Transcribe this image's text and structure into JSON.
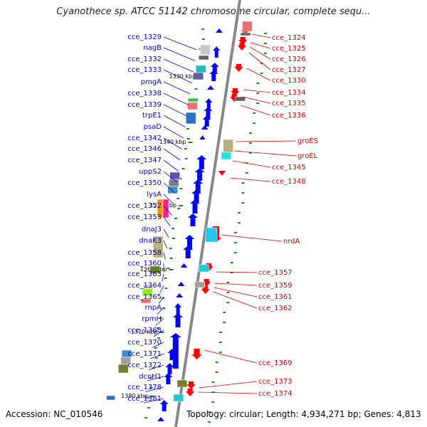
{
  "title": "Cyanothece sp. ATCC 51142 chromosome circular, complete sequ...",
  "footer": {
    "accession": "Accession: NC_010546",
    "summary": "Topology: circular; Length: 4,934,271 bp; Genes: 4,813"
  },
  "colors": {
    "left_label": "#0000cc",
    "right_label": "#cc0000",
    "forward_gene": "#0000ff",
    "reverse_gene": "#ff0000",
    "backbone": "#888888",
    "tick_mark": "#228b22"
  },
  "scale_ticks": [
    "1330 kbp",
    "1340 kbp",
    "1350 kbp",
    "1360 kbp",
    "1370 kbp",
    "1380 kbp"
  ],
  "left_labels": [
    "cce_1329",
    "nagB",
    "cce_1332",
    "cce_1333",
    "pmgA",
    "cce_1338",
    "cce_1339",
    "trpE1",
    "psaD",
    "cce_1342",
    "cce_1346",
    "cce_1347",
    "uppS2",
    "cce_1350",
    "lysA",
    "cce_1352",
    "cce_1353",
    "dnaJ3",
    "dnaK3",
    "cce_1358",
    "cce_1360",
    "cce_1363",
    "cce_1364",
    "cce_1365",
    "rnpA",
    "rpmH",
    "cce_1368",
    "cce_1370",
    "cce_1371",
    "cce_1372",
    "dcoH1",
    "cce_1378",
    "cce_1381"
  ],
  "right_labels": [
    "cce_1324",
    "cce_1325",
    "cce_1326",
    "cce_1327",
    "cce_1330",
    "cce_1334",
    "cce_1335",
    "cce_1336",
    "groES",
    "groEL",
    "cce_1345",
    "cce_1348",
    "nrdA",
    "cce_1357",
    "cce_1359",
    "cce_1361",
    "cce_1362",
    "cce_1369",
    "cce_1373",
    "cce_1374"
  ]
}
